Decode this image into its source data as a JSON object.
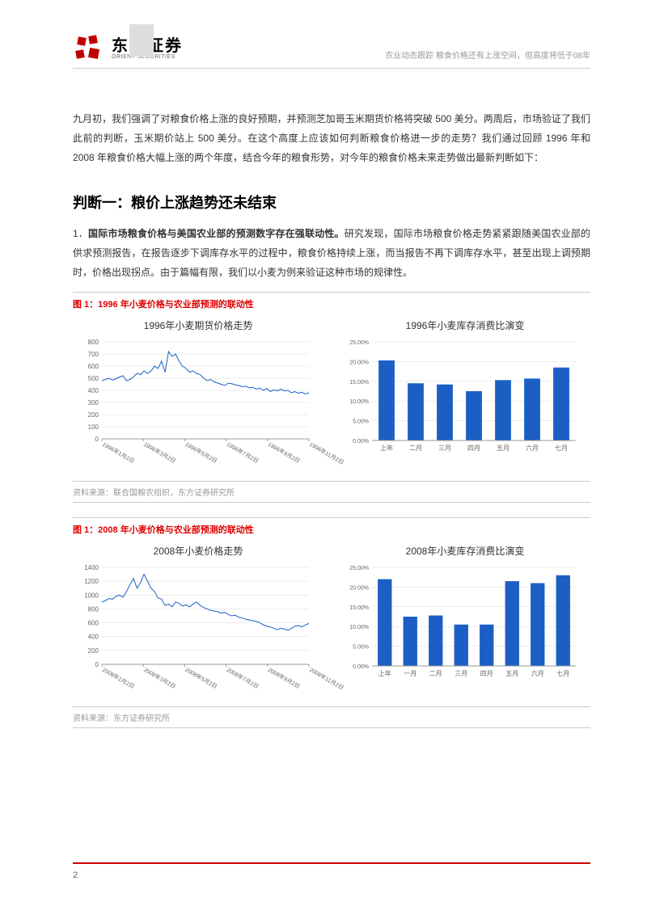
{
  "header": {
    "logo_cn": "东方证券",
    "logo_en": "ORIENT SECURITIES",
    "right_text": "农业动态跟踪 粮食价格还有上涨空间，但高度将低于08年"
  },
  "intro": "九月初，我们强调了对粮食价格上涨的良好预期，并预测芝加哥玉米期货价格将突破 500 美分。两周后，市场验证了我们此前的判断，玉米期价站上 500 美分。在这个高度上应该如何判断粮食价格进一步的走势？我们通过回顾 1996 年和 2008 年粮食价格大幅上涨的两个年度，结合今年的粮食形势，对今年的粮食价格未来走势做出最新判断如下：",
  "section_title": "判断一：粮价上涨趋势还未结束",
  "item1_num": "1．",
  "item1_bold": "国际市场粮食价格与美国农业部的预测数字存在强联动性。",
  "item1_rest": "研究发现，国际市场粮食价格走势紧紧跟随美国农业部的供求预测报告，在报告逐步下调库存水平的过程中，粮食价格持续上涨，而当报告不再下调库存水平，甚至出现上调预期时，价格出现拐点。由于篇幅有限，我们以小麦为例来验证这种市场的规律性。",
  "fig1": {
    "title": "图 1：1996 年小麦价格与农业部预测的联动性",
    "line_chart": {
      "title": "1996年小麦期货价格走势",
      "y_ticks": [
        0,
        100,
        200,
        300,
        400,
        500,
        600,
        700,
        800
      ],
      "x_labels": [
        "1996年1月2日",
        "1996年3月2日",
        "1996年5月2日",
        "1996年7月2日",
        "1996年9月2日",
        "1996年11月2日"
      ],
      "data": [
        480,
        490,
        500,
        485,
        495,
        510,
        520,
        480,
        490,
        510,
        540,
        530,
        560,
        540,
        560,
        600,
        580,
        640,
        550,
        720,
        680,
        700,
        640,
        600,
        580,
        550,
        560,
        540,
        530,
        500,
        480,
        490,
        470,
        460,
        450,
        440,
        460,
        455,
        445,
        440,
        430,
        435,
        420,
        425,
        410,
        420,
        400,
        415,
        390,
        405,
        395,
        410,
        395,
        400,
        380,
        390,
        375,
        385,
        370,
        380
      ],
      "line_color": "#1b5fc4",
      "ylim": [
        0,
        800
      ]
    },
    "bar_chart": {
      "title": "1996年小麦库存消费比演变",
      "y_ticks": [
        "0.00%",
        "5.00%",
        "10.00%",
        "15.00%",
        "20.00%",
        "25.00%"
      ],
      "categories": [
        "上年",
        "二月",
        "三月",
        "四月",
        "五月",
        "六月",
        "七月"
      ],
      "values": [
        20.3,
        14.5,
        14.2,
        12.5,
        15.3,
        15.7,
        18.5
      ],
      "bar_color": "#1b5fc4",
      "ylim": [
        0,
        25
      ]
    },
    "source": "资料来源：联合国粮农组织，东方证券研究所"
  },
  "fig2": {
    "title": "图 1：2008 年小麦价格与农业部预测的联动性",
    "line_chart": {
      "title": "2008年小麦价格走势",
      "y_ticks": [
        0,
        200,
        400,
        600,
        800,
        1000,
        1200,
        1400
      ],
      "x_labels": [
        "2008年1月2日",
        "2008年3月2日",
        "2008年5月2日",
        "2008年7月2日",
        "2008年9月2日",
        "2008年11月2日"
      ],
      "data": [
        900,
        920,
        950,
        940,
        980,
        1000,
        970,
        1050,
        1150,
        1240,
        1100,
        1180,
        1300,
        1200,
        1100,
        1050,
        960,
        940,
        850,
        870,
        830,
        900,
        880,
        840,
        860,
        830,
        870,
        900,
        850,
        820,
        800,
        780,
        770,
        760,
        740,
        750,
        720,
        700,
        710,
        680,
        670,
        650,
        640,
        630,
        620,
        600,
        570,
        550,
        540,
        520,
        500,
        520,
        510,
        490,
        520,
        550,
        560,
        540,
        570,
        590
      ],
      "line_color": "#1b5fc4",
      "ylim": [
        0,
        1400
      ]
    },
    "bar_chart": {
      "title": "2008年小麦库存消费比演变",
      "y_ticks": [
        "0.00%",
        "5.00%",
        "10.00%",
        "15.00%",
        "20.00%",
        "25.00%"
      ],
      "categories": [
        "上年",
        "一月",
        "二月",
        "三月",
        "四月",
        "五月",
        "六月",
        "七月"
      ],
      "values": [
        22.0,
        12.5,
        12.8,
        10.5,
        10.5,
        21.5,
        21.0,
        23.0
      ],
      "bar_color": "#1b5fc4",
      "ylim": [
        0,
        25
      ]
    },
    "source": "资料来源：东方证券研究所"
  },
  "page_num": "2",
  "colors": {
    "accent": "#c00000",
    "grid": "#d9d9d9"
  }
}
